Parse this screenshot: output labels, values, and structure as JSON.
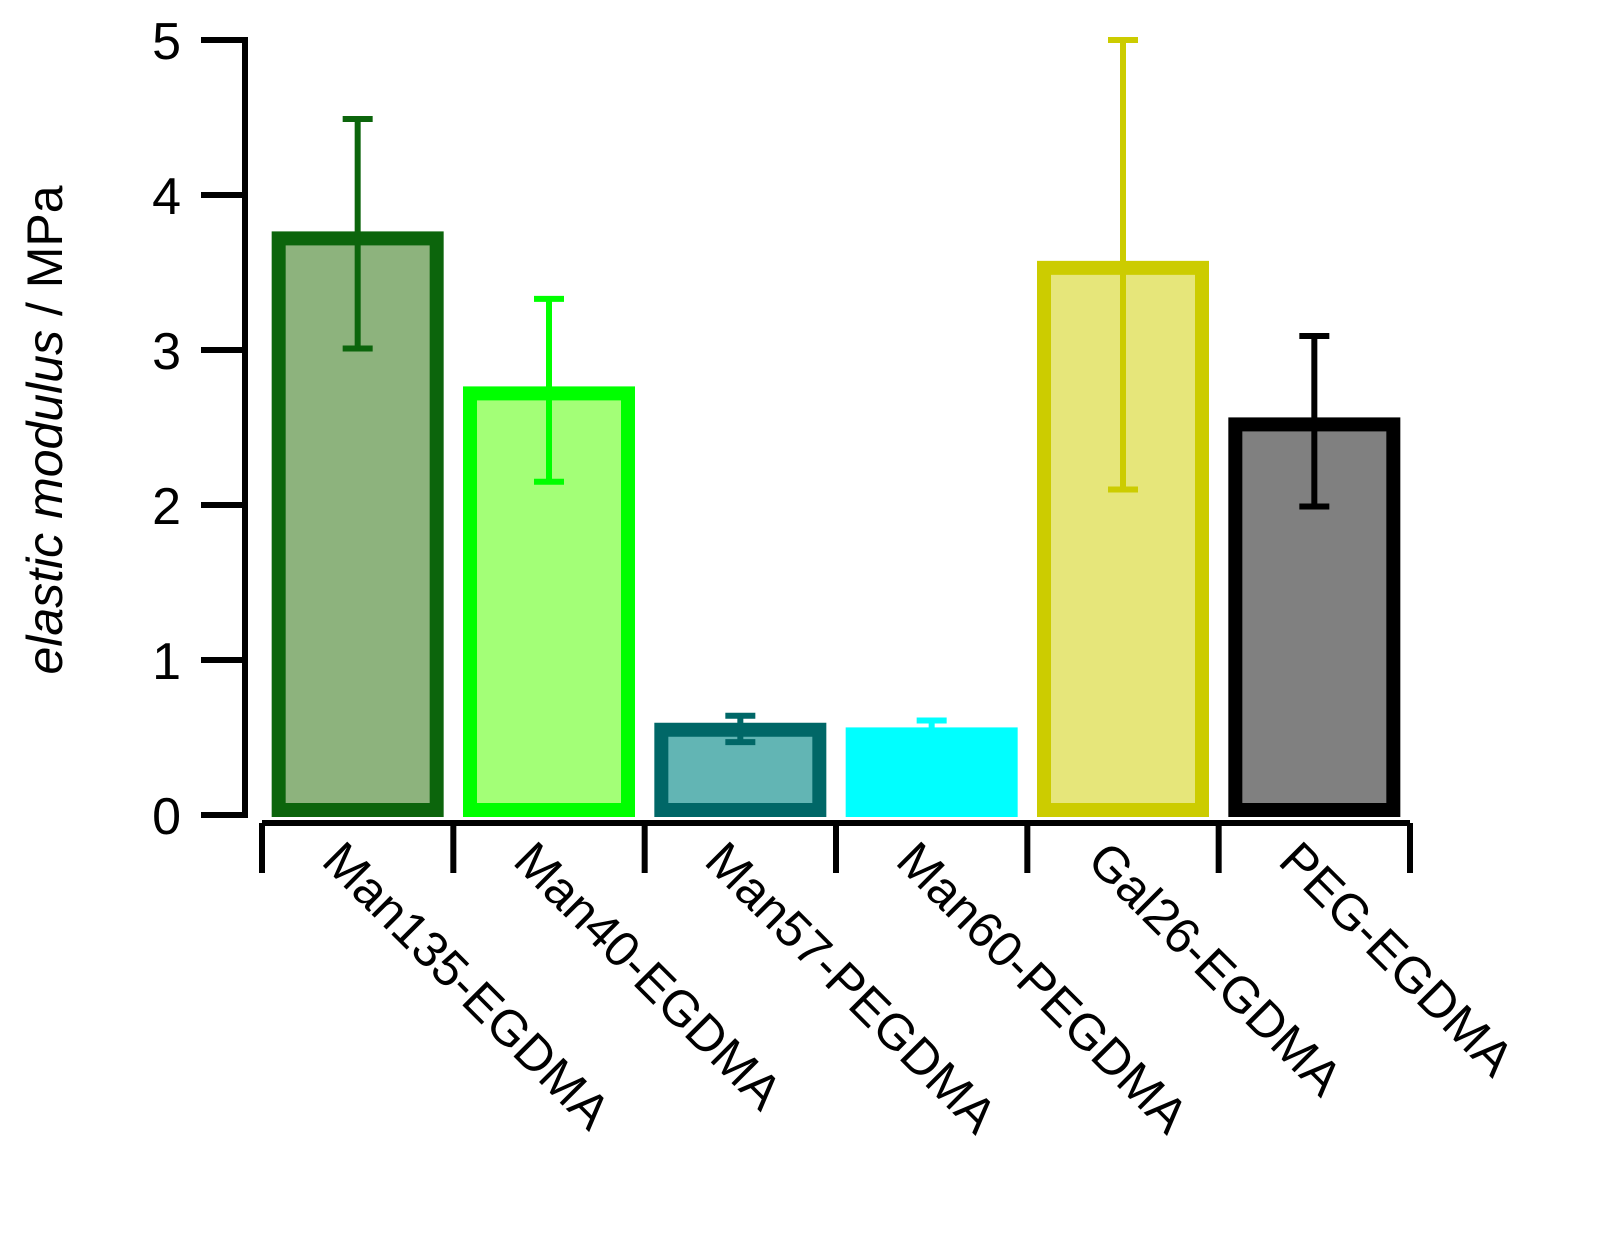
{
  "chart_data": {
    "type": "bar",
    "title": "",
    "xlabel": "",
    "ylabel_italic": "elastic modulus",
    "ylabel_unit": " / MPa",
    "ylim": [
      0,
      5
    ],
    "yticks": [
      "0",
      "1",
      "2",
      "3",
      "4",
      "5"
    ],
    "categories": [
      "Man135-EGDMA",
      "Man40-EGDMA",
      "Man57-PEGDMA",
      "Man60-PEGDMA",
      "Gal26-EGDMA",
      "PEG-EGDMA"
    ],
    "values": [
      3.72,
      2.72,
      0.55,
      0.52,
      3.53,
      2.52
    ],
    "error_low": [
      3.01,
      2.15,
      0.47,
      0.52,
      2.1,
      1.99
    ],
    "error_high": [
      4.49,
      3.33,
      0.64,
      0.61,
      5.0,
      3.09
    ],
    "colors": {
      "fill": [
        "#8db37d",
        "#a3ff77",
        "#62b5b4",
        "#00ffff",
        "#e6e67a",
        "#808080"
      ],
      "stroke": [
        "#0c650c",
        "#00ff00",
        "#006767",
        "#00ffff",
        "#cccc00",
        "#000000"
      ]
    }
  }
}
